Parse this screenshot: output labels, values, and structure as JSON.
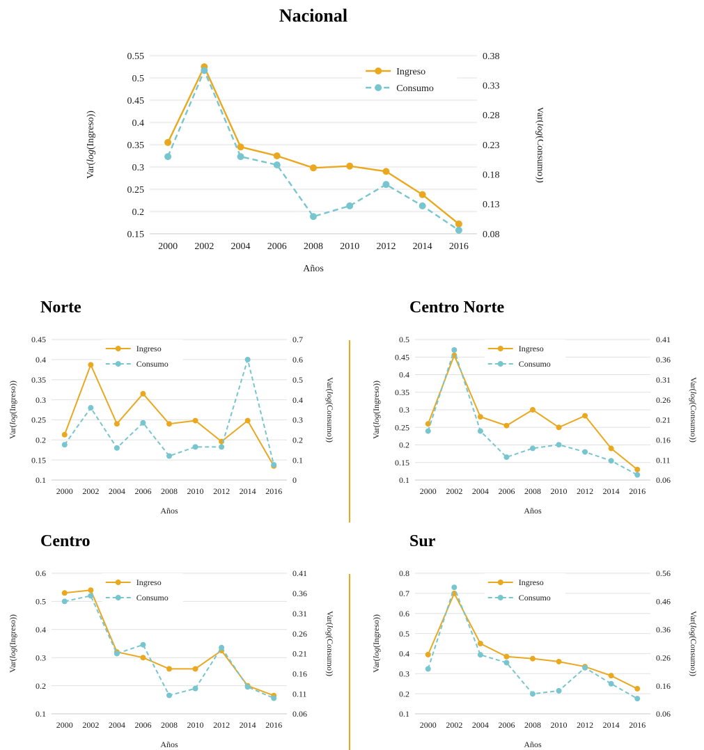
{
  "page": {
    "background": "#ffffff"
  },
  "colors": {
    "ingreso": "#E9A820",
    "consumo": "#77C5CE",
    "grid": "#E0E0E0",
    "axis_line": "#C9C9C9",
    "text": "#1B1B1B",
    "divider": "#E9A820"
  },
  "chart_data": [
    {
      "id": "nacional",
      "title": "Nacional",
      "type": "line",
      "x": [
        2000,
        2002,
        2004,
        2006,
        2008,
        2010,
        2012,
        2014,
        2016
      ],
      "xlabel": "Años",
      "left_axis": {
        "label": "Var(log(Ingreso))",
        "min": 0.15,
        "max": 0.55,
        "step": 0.05
      },
      "right_axis": {
        "label": "Var(log(Consumo))",
        "min": 0.08,
        "max": 0.38,
        "step": 0.05
      },
      "legend": {
        "position": "right"
      },
      "series": [
        {
          "name": "Ingreso",
          "axis": "left",
          "line": "solid",
          "color": "#E9A820",
          "values": [
            0.355,
            0.525,
            0.345,
            0.325,
            0.298,
            0.302,
            0.29,
            0.238,
            0.172
          ]
        },
        {
          "name": "Consumo",
          "axis": "right",
          "line": "dashed",
          "color": "#77C5CE",
          "values": [
            0.21,
            0.355,
            0.21,
            0.196,
            0.109,
            0.127,
            0.163,
            0.127,
            0.086
          ]
        }
      ]
    },
    {
      "id": "norte",
      "title": "Norte",
      "type": "line",
      "x": [
        2000,
        2002,
        2004,
        2006,
        2008,
        2010,
        2012,
        2014,
        2016
      ],
      "xlabel": "Años",
      "left_axis": {
        "label": "Var(log(Ingreso))",
        "min": 0.1,
        "max": 0.45,
        "step": 0.05
      },
      "right_axis": {
        "label": "Var(log(Consumo))",
        "min": 0,
        "max": 0.7,
        "step": 0.1
      },
      "legend": {
        "position": "center-left"
      },
      "series": [
        {
          "name": "Ingreso",
          "axis": "left",
          "line": "solid",
          "color": "#E9A820",
          "values": [
            0.213,
            0.387,
            0.24,
            0.315,
            0.24,
            0.248,
            0.196,
            0.248,
            0.135
          ]
        },
        {
          "name": "Consumo",
          "axis": "right",
          "line": "dashed",
          "color": "#77C5CE",
          "values": [
            0.176,
            0.36,
            0.16,
            0.285,
            0.12,
            0.165,
            0.165,
            0.6,
            0.076
          ]
        }
      ]
    },
    {
      "id": "centro_norte",
      "title": "Centro Norte",
      "type": "line",
      "x": [
        2000,
        2002,
        2004,
        2006,
        2008,
        2010,
        2012,
        2014,
        2016
      ],
      "xlabel": "Años",
      "left_axis": {
        "label": "Var(log(Ingreso))",
        "min": 0.1,
        "max": 0.5,
        "step": 0.05
      },
      "right_axis": {
        "label": "Var(log(Consumo))",
        "min": 0.06,
        "max": 0.41,
        "step": 0.05
      },
      "legend": {
        "position": "center"
      },
      "series": [
        {
          "name": "Ingreso",
          "axis": "left",
          "line": "solid",
          "color": "#E9A820",
          "values": [
            0.26,
            0.455,
            0.28,
            0.255,
            0.3,
            0.25,
            0.283,
            0.19,
            0.13
          ]
        },
        {
          "name": "Consumo",
          "axis": "right",
          "line": "dashed",
          "color": "#77C5CE",
          "values": [
            0.182,
            0.384,
            0.182,
            0.117,
            0.139,
            0.148,
            0.13,
            0.108,
            0.073
          ]
        }
      ]
    },
    {
      "id": "centro",
      "title": "Centro",
      "type": "line",
      "x": [
        2000,
        2002,
        2004,
        2006,
        2008,
        2010,
        2012,
        2014,
        2016
      ],
      "xlabel": "Años",
      "left_axis": {
        "label": "Var(log(Ingreso))",
        "min": 0.1,
        "max": 0.6,
        "step": 0.1
      },
      "right_axis": {
        "label": "Var(log(Consumo))",
        "min": 0.06,
        "max": 0.41,
        "step": 0.05
      },
      "legend": {
        "position": "center-left"
      },
      "series": [
        {
          "name": "Ingreso",
          "axis": "left",
          "line": "solid",
          "color": "#E9A820",
          "values": [
            0.53,
            0.54,
            0.32,
            0.3,
            0.26,
            0.26,
            0.325,
            0.2,
            0.165
          ]
        },
        {
          "name": "Consumo",
          "axis": "right",
          "line": "dashed",
          "color": "#77C5CE",
          "values": [
            0.34,
            0.354,
            0.21,
            0.232,
            0.106,
            0.123,
            0.225,
            0.127,
            0.099
          ]
        }
      ]
    },
    {
      "id": "sur",
      "title": "Sur",
      "type": "line",
      "x": [
        2000,
        2002,
        2004,
        2006,
        2008,
        2010,
        2012,
        2014,
        2016
      ],
      "xlabel": "Años",
      "left_axis": {
        "label": "Var(log(Ingreso))",
        "min": 0.1,
        "max": 0.8,
        "step": 0.1
      },
      "right_axis": {
        "label": "Var(log(Consumo))",
        "min": 0.06,
        "max": 0.56,
        "step": 0.1
      },
      "legend": {
        "position": "center"
      },
      "series": [
        {
          "name": "Ingreso",
          "axis": "left",
          "line": "solid",
          "color": "#E9A820",
          "values": [
            0.395,
            0.7,
            0.45,
            0.385,
            0.375,
            0.36,
            0.335,
            0.29,
            0.225
          ]
        },
        {
          "name": "Consumo",
          "axis": "right",
          "line": "dashed",
          "color": "#77C5CE",
          "values": [
            0.22,
            0.51,
            0.27,
            0.242,
            0.131,
            0.142,
            0.224,
            0.167,
            0.114
          ]
        }
      ]
    }
  ]
}
